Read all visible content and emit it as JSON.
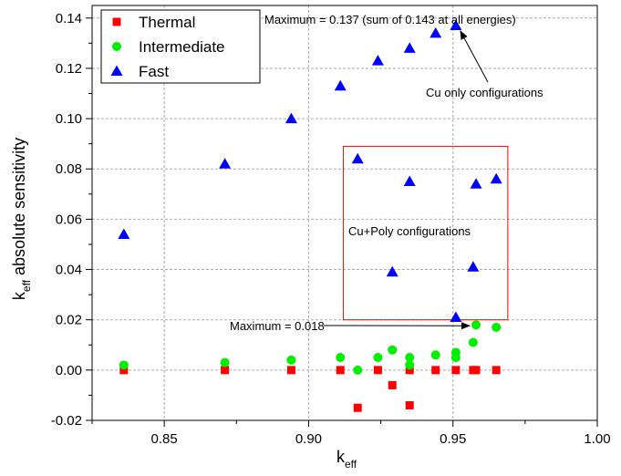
{
  "chart_data": {
    "type": "scatter",
    "xlabel": "k",
    "xlabel_sub": "eff",
    "ylabel_pre": "k",
    "ylabel_sub": "eff",
    "ylabel_post": " absolute sensitivity",
    "xlim": [
      0.825,
      1.0
    ],
    "ylim": [
      -0.02,
      0.145
    ],
    "xticks": [
      "0.85",
      "0.90",
      "0.95",
      "1.00"
    ],
    "xtick_values": [
      0.85,
      0.9,
      0.95,
      1.0
    ],
    "yticks": [
      "-0.02",
      "0.00",
      "0.02",
      "0.04",
      "0.06",
      "0.08",
      "0.10",
      "0.12",
      "0.14"
    ],
    "ytick_values": [
      -0.02,
      0.0,
      0.02,
      0.04,
      0.06,
      0.08,
      0.1,
      0.12,
      0.14
    ],
    "grid": true,
    "legend_placement": "top-left",
    "series": [
      {
        "name": "Thermal",
        "marker": "square",
        "color": "#ff0000",
        "points": [
          [
            0.836,
            0.0
          ],
          [
            0.871,
            0.0
          ],
          [
            0.894,
            0.0
          ],
          [
            0.911,
            0.0
          ],
          [
            0.917,
            -0.015
          ],
          [
            0.924,
            0.0
          ],
          [
            0.929,
            -0.006
          ],
          [
            0.935,
            -0.014
          ],
          [
            0.935,
            0.0
          ],
          [
            0.944,
            0.0
          ],
          [
            0.951,
            0.0
          ],
          [
            0.957,
            0.0
          ],
          [
            0.958,
            0.0
          ],
          [
            0.965,
            0.0
          ]
        ]
      },
      {
        "name": "Intermediate",
        "marker": "circle",
        "color": "#00ee00",
        "points": [
          [
            0.836,
            0.002
          ],
          [
            0.871,
            0.003
          ],
          [
            0.894,
            0.004
          ],
          [
            0.911,
            0.005
          ],
          [
            0.917,
            0.0
          ],
          [
            0.924,
            0.005
          ],
          [
            0.929,
            0.008
          ],
          [
            0.935,
            0.002
          ],
          [
            0.935,
            0.005
          ],
          [
            0.944,
            0.006
          ],
          [
            0.951,
            0.005
          ],
          [
            0.951,
            0.007
          ],
          [
            0.957,
            0.011
          ],
          [
            0.958,
            0.018
          ],
          [
            0.965,
            0.017
          ]
        ]
      },
      {
        "name": "Fast",
        "marker": "triangle",
        "color": "#0000ff",
        "points": [
          [
            0.836,
            0.054
          ],
          [
            0.871,
            0.082
          ],
          [
            0.894,
            0.1
          ],
          [
            0.911,
            0.113
          ],
          [
            0.917,
            0.084
          ],
          [
            0.924,
            0.123
          ],
          [
            0.929,
            0.039
          ],
          [
            0.935,
            0.128
          ],
          [
            0.935,
            0.075
          ],
          [
            0.944,
            0.134
          ],
          [
            0.951,
            0.137
          ],
          [
            0.951,
            0.021
          ],
          [
            0.957,
            0.041
          ],
          [
            0.958,
            0.074
          ],
          [
            0.965,
            0.076
          ]
        ]
      }
    ],
    "annotations": [
      {
        "text": "Maximum = 0.137 (sum of 0.143 at all energies)"
      },
      {
        "text": "Cu only configurations",
        "arrow_to": [
          0.951,
          0.137
        ]
      },
      {
        "text": "Cu+Poly configurations"
      },
      {
        "text": "Maximum = 0.018",
        "arrow_to": [
          0.958,
          0.018
        ]
      }
    ],
    "highlight_box": {
      "x_range": [
        0.912,
        0.969
      ],
      "y_range": [
        0.02,
        0.089
      ],
      "color": "#ff0000"
    }
  }
}
